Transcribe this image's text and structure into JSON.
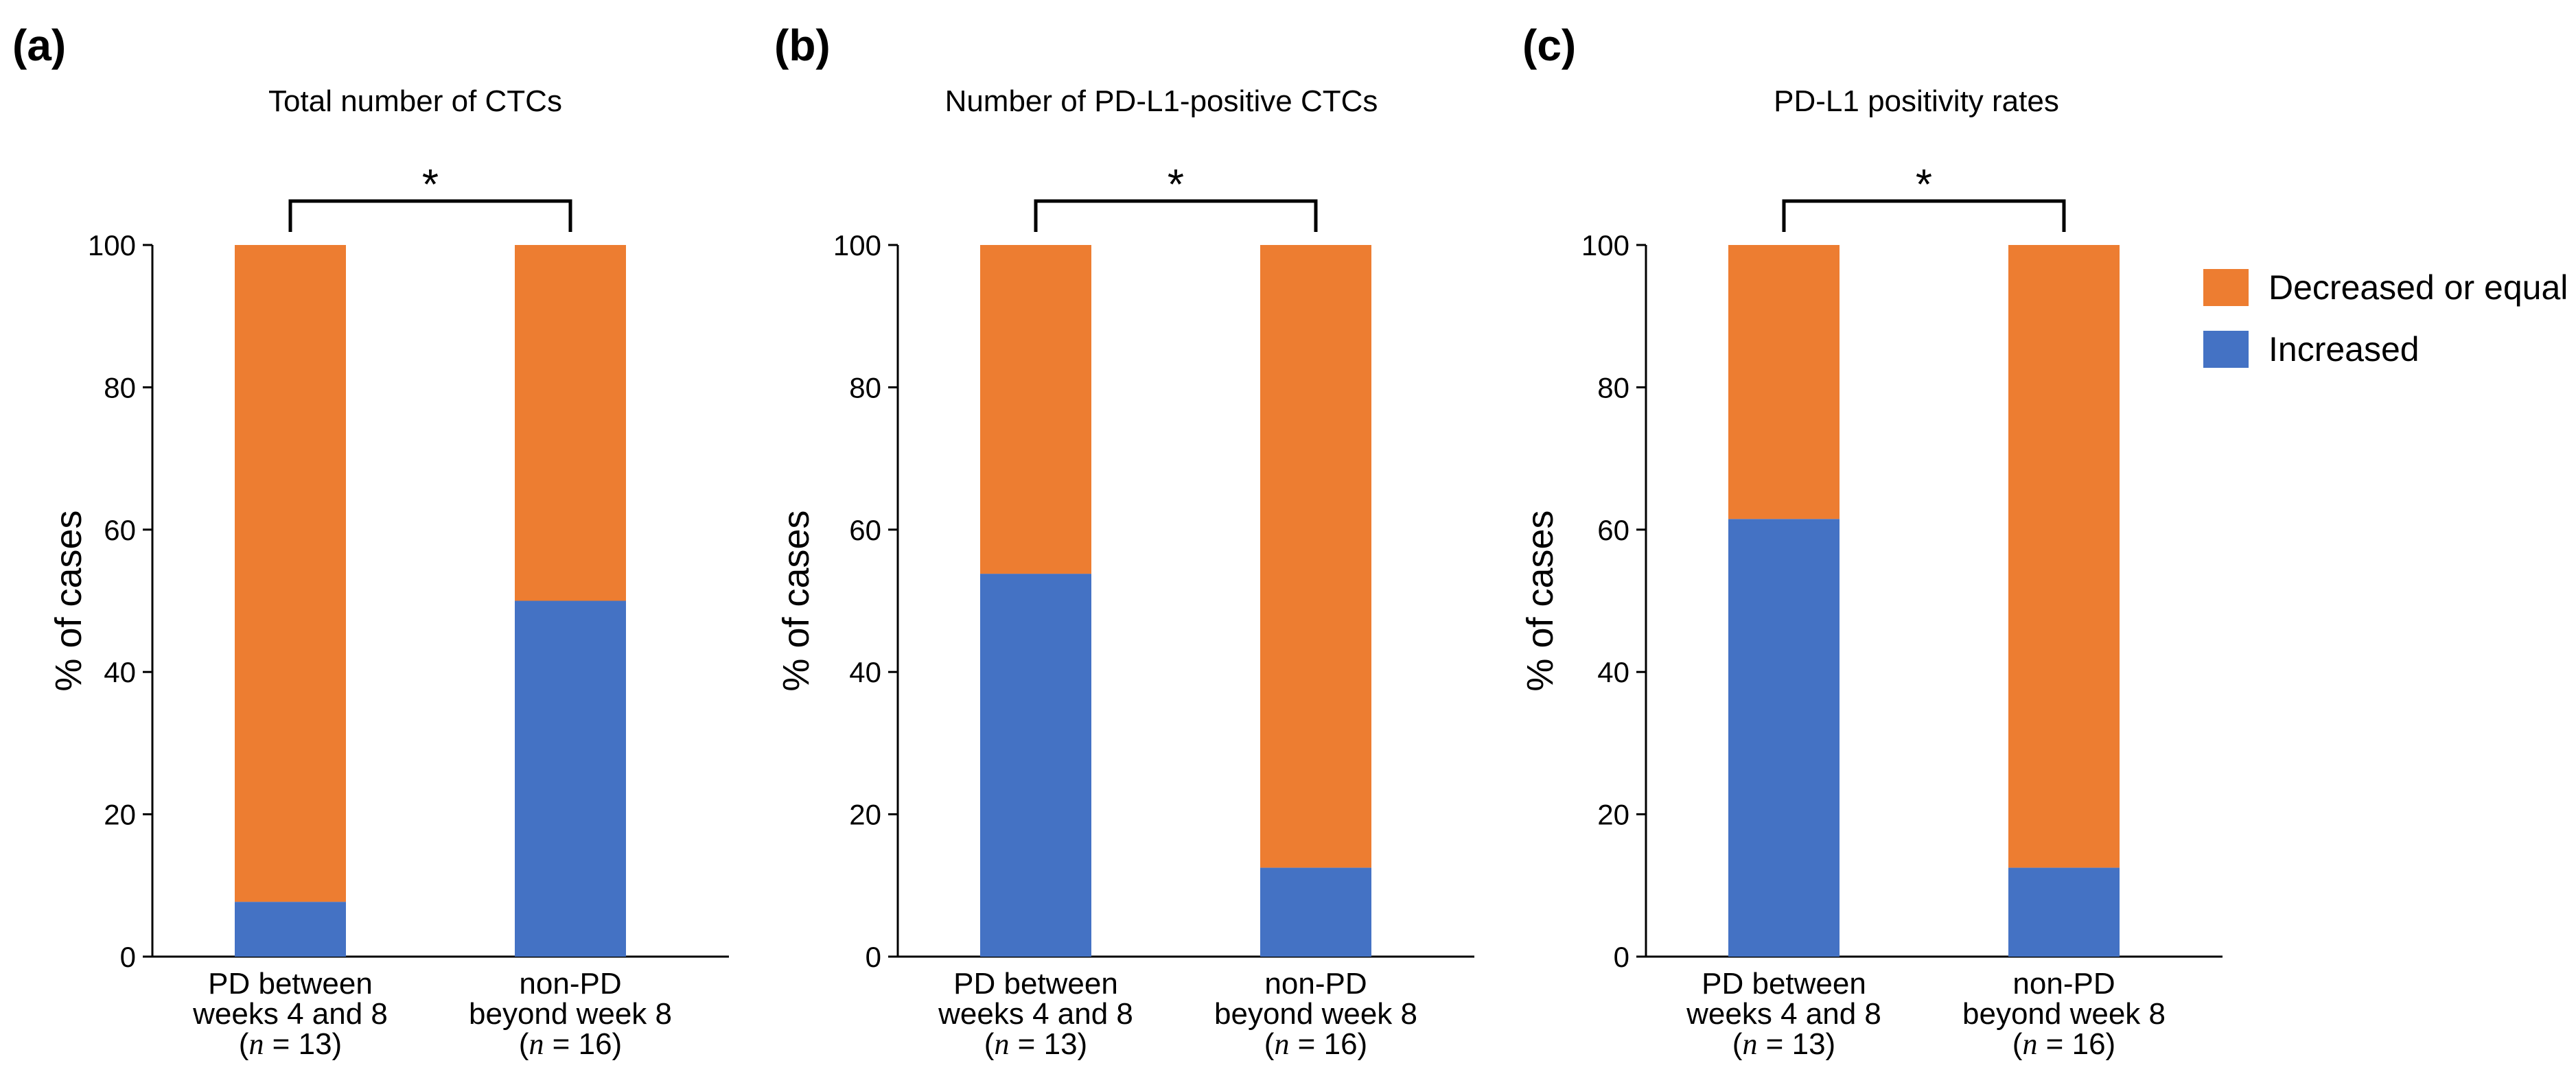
{
  "chart_data": [
    {
      "type": "bar",
      "stacked": true,
      "panel_label": "(a)",
      "title": "Total number of CTCs",
      "ylabel": "% of cases",
      "ylim": [
        0,
        100
      ],
      "yticks": [
        "0",
        "20",
        "40",
        "60",
        "80",
        "100"
      ],
      "categories": [
        {
          "lines": [
            "PD between",
            "weeks 4 and 8"
          ],
          "n_text": [
            "(",
            "n",
            " = 13)"
          ]
        },
        {
          "lines": [
            "non-PD",
            "beyond week 8"
          ],
          "n_text": [
            "(",
            "n",
            " = 16)"
          ]
        }
      ],
      "series": [
        {
          "name": "Increased",
          "color": "#4472c4",
          "values": [
            7.7,
            50.0
          ]
        },
        {
          "name": "Decreased or equal",
          "color": "#ed7d31",
          "values": [
            92.3,
            50.0
          ]
        }
      ],
      "significance": "*"
    },
    {
      "type": "bar",
      "stacked": true,
      "panel_label": "(b)",
      "title": "Number of PD-L1-positive CTCs",
      "ylabel": "% of cases",
      "ylim": [
        0,
        100
      ],
      "yticks": [
        "0",
        "20",
        "40",
        "60",
        "80",
        "100"
      ],
      "categories": [
        {
          "lines": [
            "PD between",
            "weeks 4 and 8"
          ],
          "n_text": [
            "(",
            "n",
            " = 13)"
          ]
        },
        {
          "lines": [
            "non-PD",
            "beyond week 8"
          ],
          "n_text": [
            "(",
            "n",
            " = 16)"
          ]
        }
      ],
      "series": [
        {
          "name": "Increased",
          "color": "#4472c4",
          "values": [
            53.8,
            12.5
          ]
        },
        {
          "name": "Decreased or equal",
          "color": "#ed7d31",
          "values": [
            46.2,
            87.5
          ]
        }
      ],
      "significance": "*"
    },
    {
      "type": "bar",
      "stacked": true,
      "panel_label": "(c)",
      "title": "PD-L1 positivity rates",
      "ylabel": "% of cases",
      "ylim": [
        0,
        100
      ],
      "yticks": [
        "0",
        "20",
        "40",
        "60",
        "80",
        "100"
      ],
      "categories": [
        {
          "lines": [
            "PD between",
            "weeks 4 and 8"
          ],
          "n_text": [
            "(",
            "n",
            " = 13)"
          ]
        },
        {
          "lines": [
            "non-PD",
            "beyond week 8"
          ],
          "n_text": [
            "(",
            "n",
            " = 16)"
          ]
        }
      ],
      "series": [
        {
          "name": "Increased",
          "color": "#4472c4",
          "values": [
            61.5,
            12.5
          ]
        },
        {
          "name": "Decreased or equal",
          "color": "#ed7d31",
          "values": [
            38.5,
            87.5
          ]
        }
      ],
      "significance": "*"
    }
  ],
  "legend": {
    "items": [
      {
        "label": "Decreased or equal",
        "color": "#ed7d31"
      },
      {
        "label": "Increased",
        "color": "#4472c4"
      }
    ]
  }
}
